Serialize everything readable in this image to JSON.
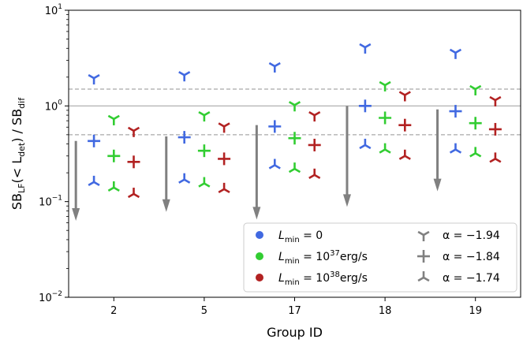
{
  "chart_data": {
    "type": "scatter",
    "xlabel": "Group ID",
    "ylabel": {
      "base": "SB",
      "sub1": "LF",
      "paren": "(< L",
      "sub2": "det",
      "close": ") / SB",
      "sub3": "dif"
    },
    "yscale": "log",
    "ylim": [
      0.01,
      10
    ],
    "y_ticks": [
      {
        "value": 0.01,
        "base": "10",
        "exp": "−2"
      },
      {
        "value": 0.1,
        "base": "10",
        "exp": "−1"
      },
      {
        "value": 1,
        "base": "10",
        "exp": "0"
      },
      {
        "value": 10,
        "base": "10",
        "exp": "1"
      }
    ],
    "categories": [
      "2",
      "5",
      "17",
      "18",
      "19"
    ],
    "reference_lines": [
      {
        "value": 1.0,
        "style": "solid"
      },
      {
        "value": 1.5,
        "style": "dashed"
      },
      {
        "value": 0.5,
        "style": "dashed"
      }
    ],
    "colors": {
      "blue": "#4169e1",
      "green": "#32cd32",
      "red": "#b22222",
      "gray": "#808080"
    },
    "series": [
      {
        "color_key": "blue",
        "offset": -0.22,
        "points": [
          {
            "group": "2",
            "alpha_n194": 1.95,
            "alpha_n184": 0.43,
            "alpha_n174": 0.16
          },
          {
            "group": "5",
            "alpha_n194": 2.1,
            "alpha_n184": 0.47,
            "alpha_n174": 0.17
          },
          {
            "group": "17",
            "alpha_n194": 2.6,
            "alpha_n184": 0.61,
            "alpha_n174": 0.24
          },
          {
            "group": "18",
            "alpha_n194": 4.1,
            "alpha_n184": 1.0,
            "alpha_n174": 0.39
          },
          {
            "group": "19",
            "alpha_n194": 3.6,
            "alpha_n184": 0.88,
            "alpha_n174": 0.35
          }
        ]
      },
      {
        "color_key": "green",
        "offset": 0.0,
        "points": [
          {
            "group": "2",
            "alpha_n194": 0.73,
            "alpha_n184": 0.3,
            "alpha_n174": 0.14
          },
          {
            "group": "5",
            "alpha_n194": 0.8,
            "alpha_n184": 0.34,
            "alpha_n174": 0.155
          },
          {
            "group": "17",
            "alpha_n194": 1.02,
            "alpha_n184": 0.46,
            "alpha_n174": 0.22
          },
          {
            "group": "18",
            "alpha_n194": 1.65,
            "alpha_n184": 0.75,
            "alpha_n174": 0.35
          },
          {
            "group": "19",
            "alpha_n194": 1.5,
            "alpha_n184": 0.66,
            "alpha_n174": 0.32
          }
        ]
      },
      {
        "color_key": "red",
        "offset": 0.22,
        "points": [
          {
            "group": "2",
            "alpha_n194": 0.55,
            "alpha_n184": 0.26,
            "alpha_n174": 0.12
          },
          {
            "group": "5",
            "alpha_n194": 0.61,
            "alpha_n184": 0.28,
            "alpha_n174": 0.135
          },
          {
            "group": "17",
            "alpha_n194": 0.8,
            "alpha_n184": 0.39,
            "alpha_n174": 0.19
          },
          {
            "group": "18",
            "alpha_n194": 1.3,
            "alpha_n184": 0.63,
            "alpha_n174": 0.3
          },
          {
            "group": "19",
            "alpha_n194": 1.15,
            "alpha_n184": 0.57,
            "alpha_n174": 0.28
          }
        ]
      }
    ],
    "upper_limits": [
      {
        "group": "2",
        "offset": -0.42,
        "from": 0.43,
        "to": 0.063
      },
      {
        "group": "5",
        "offset": -0.42,
        "from": 0.48,
        "to": 0.078
      },
      {
        "group": "17",
        "offset": -0.42,
        "from": 0.63,
        "to": 0.065
      },
      {
        "group": "18",
        "offset": -0.42,
        "from": 1.0,
        "to": 0.088
      },
      {
        "group": "19",
        "offset": -0.42,
        "from": 0.92,
        "to": 0.128
      }
    ],
    "legend": {
      "placement": "lower-right",
      "colors": [
        {
          "color_key": "blue",
          "label_base": "L",
          "label_sub": "min",
          "label_rest": " = 0",
          "label_exp": "",
          "label_unit": ""
        },
        {
          "color_key": "green",
          "label_base": "L",
          "label_sub": "min",
          "label_rest": " = 10",
          "label_exp": "37",
          "label_unit": "erg/s"
        },
        {
          "color_key": "red",
          "label_base": "L",
          "label_sub": "min",
          "label_rest": " = 10",
          "label_exp": "38",
          "label_unit": "erg/s"
        }
      ],
      "markers": [
        {
          "marker": "tri_down",
          "label": "α = −1.94"
        },
        {
          "marker": "plus",
          "label": "α = −1.84"
        },
        {
          "marker": "tri_up",
          "label": "α = −1.74"
        }
      ]
    }
  }
}
